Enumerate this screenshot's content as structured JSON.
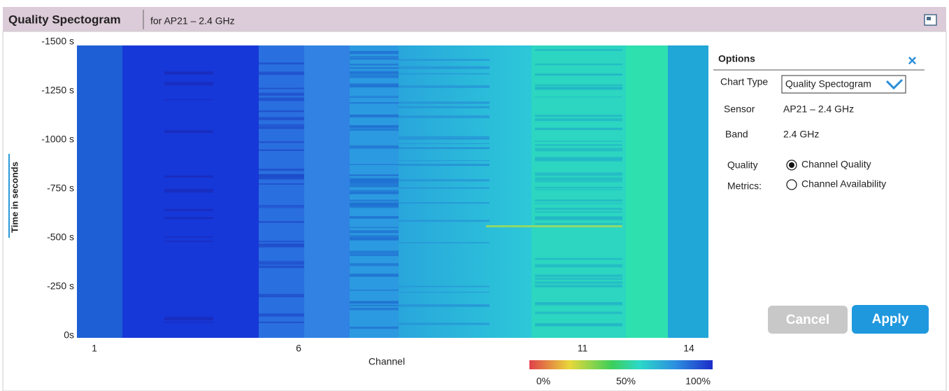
{
  "header": {
    "title": "Quality Spectogram",
    "subtitle": "for AP21 – 2.4 GHz"
  },
  "plot": {
    "y_axis_label": "Time in seconds",
    "y_tick_labels": [
      "-1500 s",
      "-1250 s",
      "-1000 s",
      "-750 s",
      "-500 s",
      "-250 s",
      "0s"
    ],
    "x_tick_labels": [
      "1",
      "6",
      "11",
      "14"
    ],
    "x_axis_label": "Channel",
    "colorbar_labels": [
      "0%",
      "50%",
      "100%"
    ]
  },
  "options": {
    "title": "Options",
    "chart_type": {
      "label": "Chart Type",
      "value": "Quality Spectogram"
    },
    "sensor": {
      "label": "Sensor",
      "value": "AP21 – 2.4 GHz"
    },
    "band": {
      "label": "Band",
      "value": "2.4 GHz"
    },
    "quality_metrics": {
      "label": [
        "Quality",
        "Metrics:"
      ],
      "options": [
        "Channel Quality",
        "Channel Availability"
      ],
      "selected": 0
    },
    "buttons": [
      "Cancel",
      "Apply"
    ]
  }
}
